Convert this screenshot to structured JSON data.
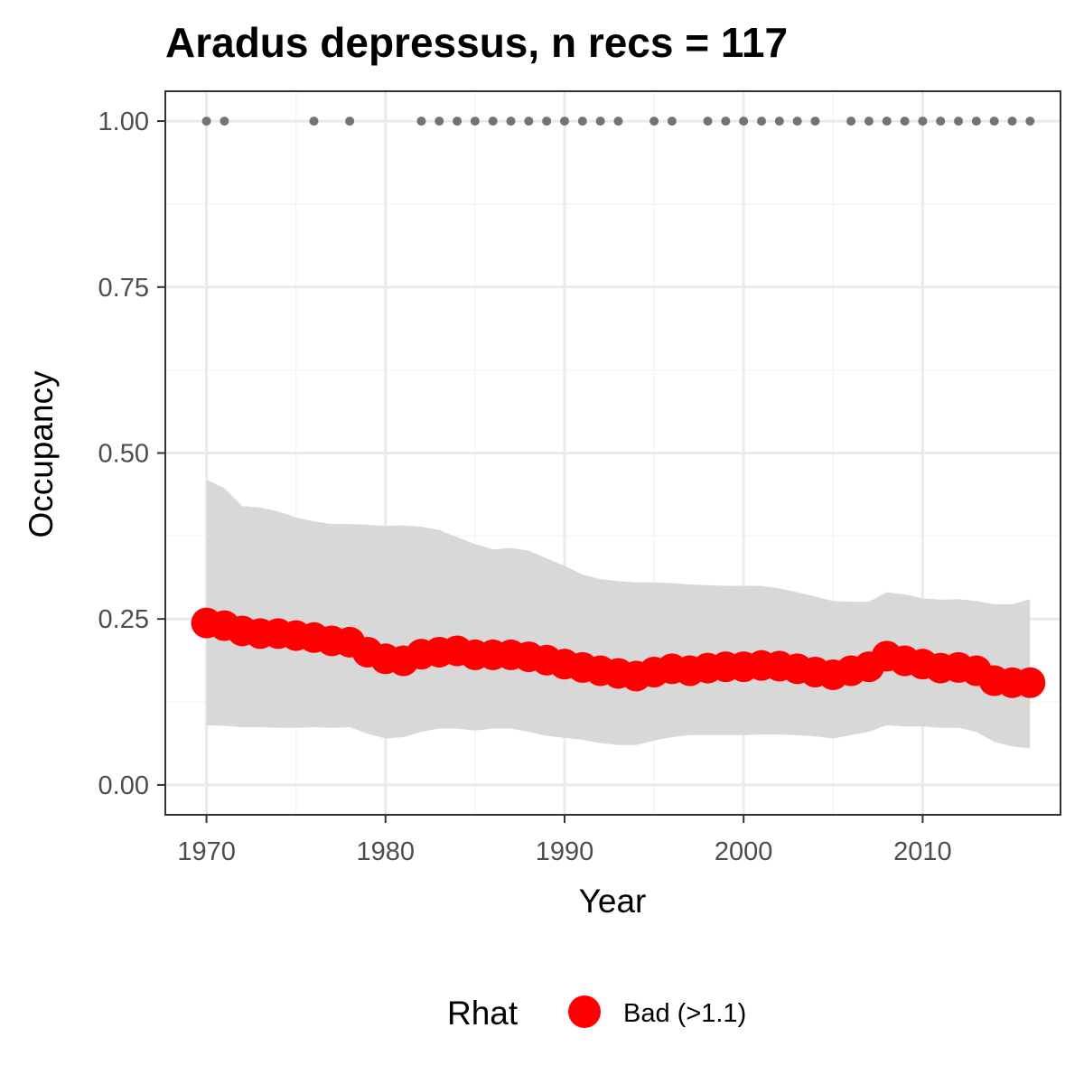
{
  "chart_data": {
    "type": "line",
    "title": "Aradus depressus, n recs = 117",
    "xlabel": "Year",
    "ylabel": "Occupancy",
    "xlim": [
      1967.7,
      2017.7
    ],
    "ylim": [
      -0.045,
      1.045
    ],
    "x_ticks": [
      1970,
      1980,
      1990,
      2000,
      2010
    ],
    "x_tick_labels": [
      "1970",
      "1980",
      "1990",
      "2000",
      "2010"
    ],
    "y_ticks": [
      0,
      0.25,
      0.5,
      0.75,
      1
    ],
    "y_tick_labels": [
      "0.00",
      "0.25",
      "0.50",
      "0.75",
      "1.00"
    ],
    "grid": true,
    "legend": {
      "title": "Rhat",
      "position": "bottom",
      "entries": [
        {
          "label": "Bad (>1.1)",
          "color": "#ff0000"
        }
      ]
    },
    "colors": {
      "ribbon": "#d6d6d6",
      "points": "#ff0000",
      "records": "#737373",
      "grid_major": "#ebebeb",
      "grid_minor": "#f4f4f4",
      "panel_border": "#333333"
    },
    "years": [
      1970,
      1971,
      1972,
      1973,
      1974,
      1975,
      1976,
      1977,
      1978,
      1979,
      1980,
      1981,
      1982,
      1983,
      1984,
      1985,
      1986,
      1987,
      1988,
      1989,
      1990,
      1991,
      1992,
      1993,
      1994,
      1995,
      1996,
      1997,
      1998,
      1999,
      2000,
      2001,
      2002,
      2003,
      2004,
      2005,
      2006,
      2007,
      2008,
      2009,
      2010,
      2011,
      2012,
      2013,
      2014,
      2015,
      2016
    ],
    "series": [
      {
        "name": "Bad (>1.1)",
        "values": [
          0.244,
          0.24,
          0.232,
          0.228,
          0.228,
          0.225,
          0.222,
          0.217,
          0.215,
          0.2,
          0.19,
          0.187,
          0.197,
          0.2,
          0.202,
          0.196,
          0.196,
          0.196,
          0.193,
          0.188,
          0.182,
          0.177,
          0.172,
          0.168,
          0.164,
          0.17,
          0.175,
          0.172,
          0.176,
          0.178,
          0.178,
          0.18,
          0.179,
          0.175,
          0.17,
          0.166,
          0.172,
          0.178,
          0.194,
          0.187,
          0.182,
          0.176,
          0.177,
          0.172,
          0.157,
          0.154,
          0.154
        ]
      }
    ],
    "ribbon": {
      "upper": [
        0.46,
        0.447,
        0.42,
        0.418,
        0.412,
        0.403,
        0.397,
        0.393,
        0.393,
        0.392,
        0.39,
        0.391,
        0.389,
        0.384,
        0.373,
        0.363,
        0.355,
        0.357,
        0.353,
        0.341,
        0.33,
        0.317,
        0.31,
        0.307,
        0.305,
        0.305,
        0.304,
        0.302,
        0.301,
        0.3,
        0.3,
        0.3,
        0.296,
        0.29,
        0.284,
        0.277,
        0.276,
        0.276,
        0.29,
        0.287,
        0.281,
        0.279,
        0.28,
        0.277,
        0.272,
        0.272,
        0.28
      ],
      "lower": [
        0.09,
        0.089,
        0.087,
        0.087,
        0.086,
        0.086,
        0.087,
        0.086,
        0.087,
        0.077,
        0.07,
        0.072,
        0.08,
        0.085,
        0.085,
        0.082,
        0.085,
        0.085,
        0.08,
        0.074,
        0.071,
        0.068,
        0.063,
        0.06,
        0.06,
        0.067,
        0.072,
        0.075,
        0.075,
        0.075,
        0.075,
        0.076,
        0.076,
        0.075,
        0.073,
        0.07,
        0.075,
        0.08,
        0.09,
        0.088,
        0.088,
        0.086,
        0.086,
        0.08,
        0.065,
        0.058,
        0.055
      ]
    },
    "records": {
      "y": 1,
      "years": [
        1970,
        1971,
        1976,
        1978,
        1982,
        1983,
        1984,
        1985,
        1986,
        1987,
        1988,
        1989,
        1990,
        1991,
        1992,
        1993,
        1995,
        1996,
        1998,
        1999,
        2000,
        2001,
        2002,
        2003,
        2004,
        2006,
        2007,
        2008,
        2009,
        2010,
        2011,
        2012,
        2013,
        2014,
        2015,
        2016
      ]
    }
  }
}
